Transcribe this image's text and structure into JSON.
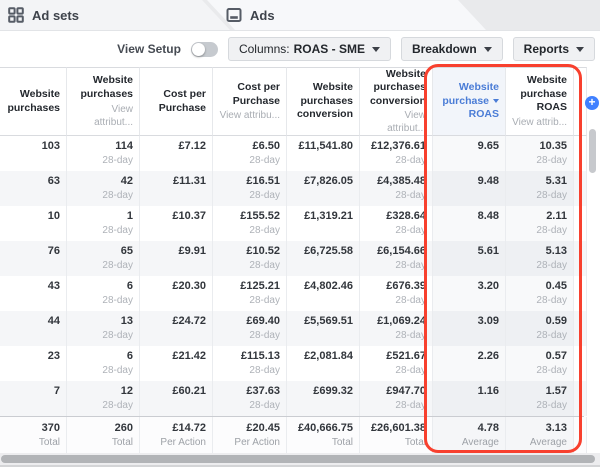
{
  "tabs": [
    {
      "label": "Ad sets",
      "icon": "grid-icon"
    },
    {
      "label": "Ads",
      "icon": "ads-card-icon"
    }
  ],
  "toolbar": {
    "view_setup_label": "View Setup",
    "view_setup_state": "off",
    "columns_prefix": "Columns:",
    "columns_value": "ROAS - SME",
    "breakdown_label": "Breakdown",
    "reports_label": "Reports"
  },
  "table": {
    "columns": [
      {
        "title": "Website purchases"
      },
      {
        "title": "Website purchases",
        "sub": "View attribut..."
      },
      {
        "title": "Cost per Purchase"
      },
      {
        "title": "Cost per Purchase",
        "sub": "View attribu..."
      },
      {
        "title": "Website purchases conversion"
      },
      {
        "title": "Website purchases conversion",
        "sub": "View attribut..."
      },
      {
        "title": "Website purchase",
        "title_suffix": "ROAS",
        "sorted": true
      },
      {
        "title": "Website purchase ROAS",
        "sub": "View attrib..."
      }
    ],
    "attribution_window": "28-day",
    "sub_value_columns": [
      1,
      3,
      5,
      7
    ],
    "rows": [
      [
        "103",
        "114",
        "£7.12",
        "£6.50",
        "£11,541.80",
        "£12,376.61",
        "9.65",
        "10.35"
      ],
      [
        "63",
        "42",
        "£11.31",
        "£16.51",
        "£7,826.05",
        "£4,385.48",
        "9.48",
        "5.31"
      ],
      [
        "10",
        "1",
        "£10.37",
        "£155.52",
        "£1,319.21",
        "£328.64",
        "8.48",
        "2.11"
      ],
      [
        "76",
        "65",
        "£9.91",
        "£10.52",
        "£6,725.58",
        "£6,154.66",
        "5.61",
        "5.13"
      ],
      [
        "43",
        "6",
        "£20.30",
        "£125.21",
        "£4,802.46",
        "£676.39",
        "3.20",
        "0.45"
      ],
      [
        "44",
        "13",
        "£24.72",
        "£69.40",
        "£5,569.51",
        "£1,069.24",
        "3.09",
        "0.59"
      ],
      [
        "23",
        "6",
        "£21.42",
        "£115.13",
        "£2,081.84",
        "£521.67",
        "2.26",
        "0.57"
      ],
      [
        "7",
        "12",
        "£60.21",
        "£37.63",
        "£699.32",
        "£947.70",
        "1.16",
        "1.57"
      ]
    ],
    "totals": {
      "values": [
        "370",
        "260",
        "£14.72",
        "£20.45",
        "£40,666.75",
        "£26,601.38",
        "4.78",
        "3.13"
      ],
      "labels": [
        "Total",
        "Total",
        "Per Action",
        "Per Action",
        "Total",
        "Total",
        "Average",
        "Average"
      ]
    }
  },
  "add_column_button": "+",
  "colors": {
    "accent_blue": "#4080ff",
    "sorted_header_blue": "#4a7cd6",
    "annotation_red": "#f8402e",
    "row_alt_bg": "#f5f6f8"
  }
}
